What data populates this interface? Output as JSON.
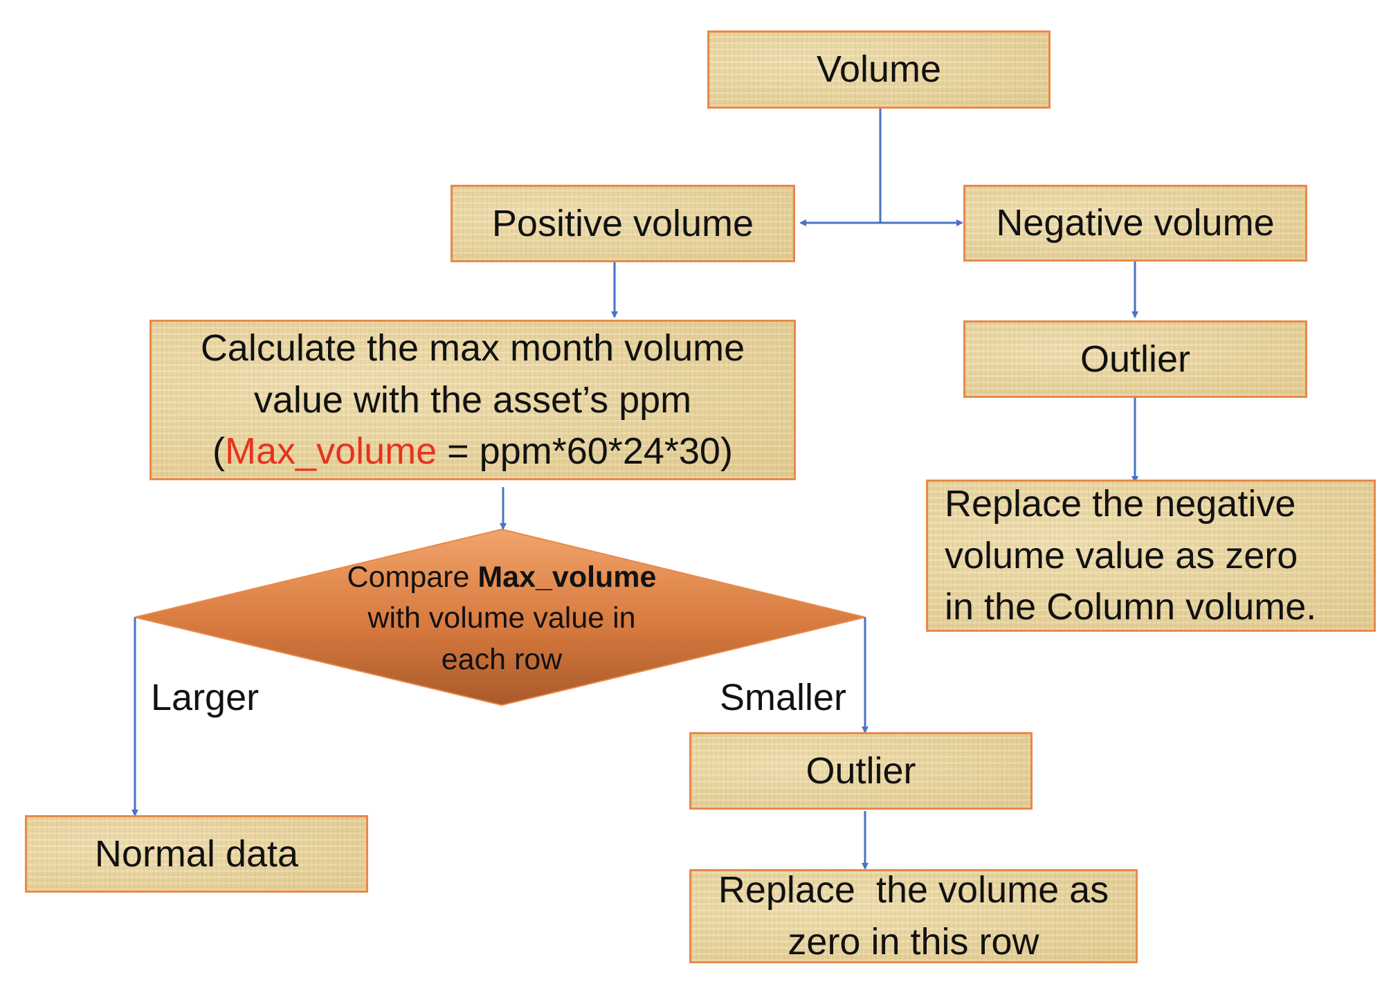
{
  "nodes": {
    "volume": "Volume",
    "positive_volume": "Positive volume",
    "negative_volume": "Negative volume",
    "calc": {
      "line1": "Calculate the max month volume",
      "line2": "value with the asset’s ppm",
      "line3_open": "(",
      "line3_var": "Max_volume",
      "line3_rest": " = ppm*60*24*30)"
    },
    "outlier_right": "Outlier",
    "replace_negative": {
      "line1": "Replace the negative",
      "line2": "volume value as zero",
      "line3": "in the Column volume."
    },
    "compare": {
      "word1": "Compare ",
      "bold": "Max_volume",
      "line2": "with volume value in",
      "line3": "each row"
    },
    "normal_data": "Normal data",
    "outlier_bottom": "Outlier",
    "replace_row": {
      "line1": "Replace  the volume as",
      "line2": "zero in this row"
    }
  },
  "edge_labels": {
    "larger": "Larger",
    "smaller": "Smaller"
  },
  "colors": {
    "box_fill": "#e8d39b",
    "box_border": "#e8894a",
    "diamond_top": "#f1a46b",
    "diamond_bottom": "#a85a2a",
    "connector": "#4a72c4",
    "highlight_text": "#e8321e"
  }
}
